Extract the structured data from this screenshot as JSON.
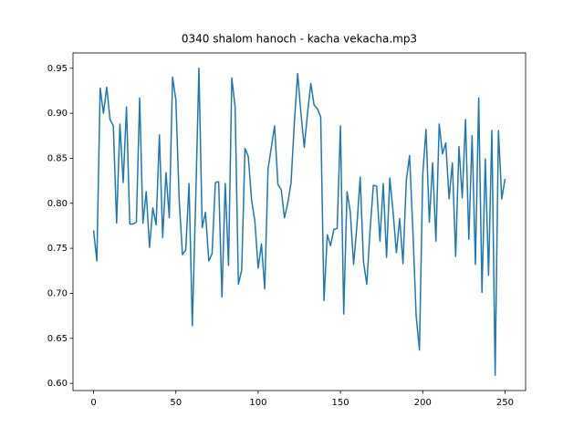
{
  "chart_data": {
    "type": "line",
    "title": "0340 shalom hanoch - kacha vekacha.mp3",
    "color": "#1f77b4",
    "x": [
      0,
      2,
      4,
      6,
      8,
      10,
      12,
      14,
      16,
      18,
      20,
      22,
      24,
      26,
      28,
      30,
      32,
      34,
      36,
      38,
      40,
      42,
      44,
      46,
      48,
      50,
      52,
      54,
      56,
      58,
      60,
      62,
      64,
      66,
      68,
      70,
      72,
      74,
      76,
      78,
      80,
      82,
      84,
      86,
      88,
      90,
      92,
      94,
      96,
      98,
      100,
      102,
      104,
      106,
      108,
      110,
      112,
      114,
      116,
      118,
      120,
      122,
      124,
      126,
      128,
      130,
      132,
      134,
      136,
      138,
      140,
      142,
      144,
      146,
      148,
      150,
      152,
      154,
      156,
      158,
      160,
      162,
      164,
      166,
      168,
      170,
      172,
      174,
      176,
      178,
      180,
      182,
      184,
      186,
      188,
      190,
      192,
      194,
      196,
      198,
      200,
      202,
      204,
      206,
      208,
      210,
      212,
      214,
      216,
      218,
      220,
      222,
      224,
      226,
      228,
      230,
      232,
      234,
      236,
      238,
      240,
      242,
      244,
      246,
      248,
      250
    ],
    "values": [
      0.77,
      0.736,
      0.928,
      0.9,
      0.929,
      0.893,
      0.886,
      0.778,
      0.888,
      0.823,
      0.907,
      0.777,
      0.777,
      0.779,
      0.917,
      0.778,
      0.813,
      0.751,
      0.795,
      0.776,
      0.876,
      0.762,
      0.834,
      0.784,
      0.94,
      0.915,
      0.805,
      0.743,
      0.748,
      0.822,
      0.664,
      0.8,
      0.95,
      0.773,
      0.79,
      0.736,
      0.744,
      0.823,
      0.824,
      0.696,
      0.822,
      0.731,
      0.939,
      0.907,
      0.71,
      0.726,
      0.861,
      0.852,
      0.804,
      0.78,
      0.728,
      0.755,
      0.705,
      0.838,
      0.862,
      0.886,
      0.821,
      0.815,
      0.784,
      0.8,
      0.823,
      0.89,
      0.944,
      0.9,
      0.862,
      0.9,
      0.933,
      0.909,
      0.905,
      0.896,
      0.692,
      0.765,
      0.753,
      0.771,
      0.772,
      0.886,
      0.677,
      0.813,
      0.79,
      0.732,
      0.775,
      0.829,
      0.735,
      0.71,
      0.77,
      0.82,
      0.819,
      0.758,
      0.822,
      0.74,
      0.828,
      0.79,
      0.745,
      0.783,
      0.733,
      0.825,
      0.853,
      0.77,
      0.675,
      0.637,
      0.832,
      0.882,
      0.779,
      0.845,
      0.758,
      0.888,
      0.855,
      0.867,
      0.805,
      0.845,
      0.741,
      0.863,
      0.806,
      0.893,
      0.76,
      0.875,
      0.732,
      0.917,
      0.701,
      0.849,
      0.72,
      0.881,
      0.609,
      0.881,
      0.805,
      0.827
    ],
    "xlim": [
      -12.5,
      262.5
    ],
    "ylim": [
      0.592,
      0.967
    ],
    "xticks": [
      0,
      50,
      100,
      150,
      200,
      250
    ],
    "yticks": [
      {
        "value": 0.6,
        "label": "0.60"
      },
      0.65,
      {
        "value": 0.7,
        "label": "0.70"
      },
      0.75,
      {
        "value": 0.8,
        "label": "0.80"
      },
      0.85,
      {
        "value": 0.9,
        "label": "0.90"
      },
      0.95
    ]
  }
}
